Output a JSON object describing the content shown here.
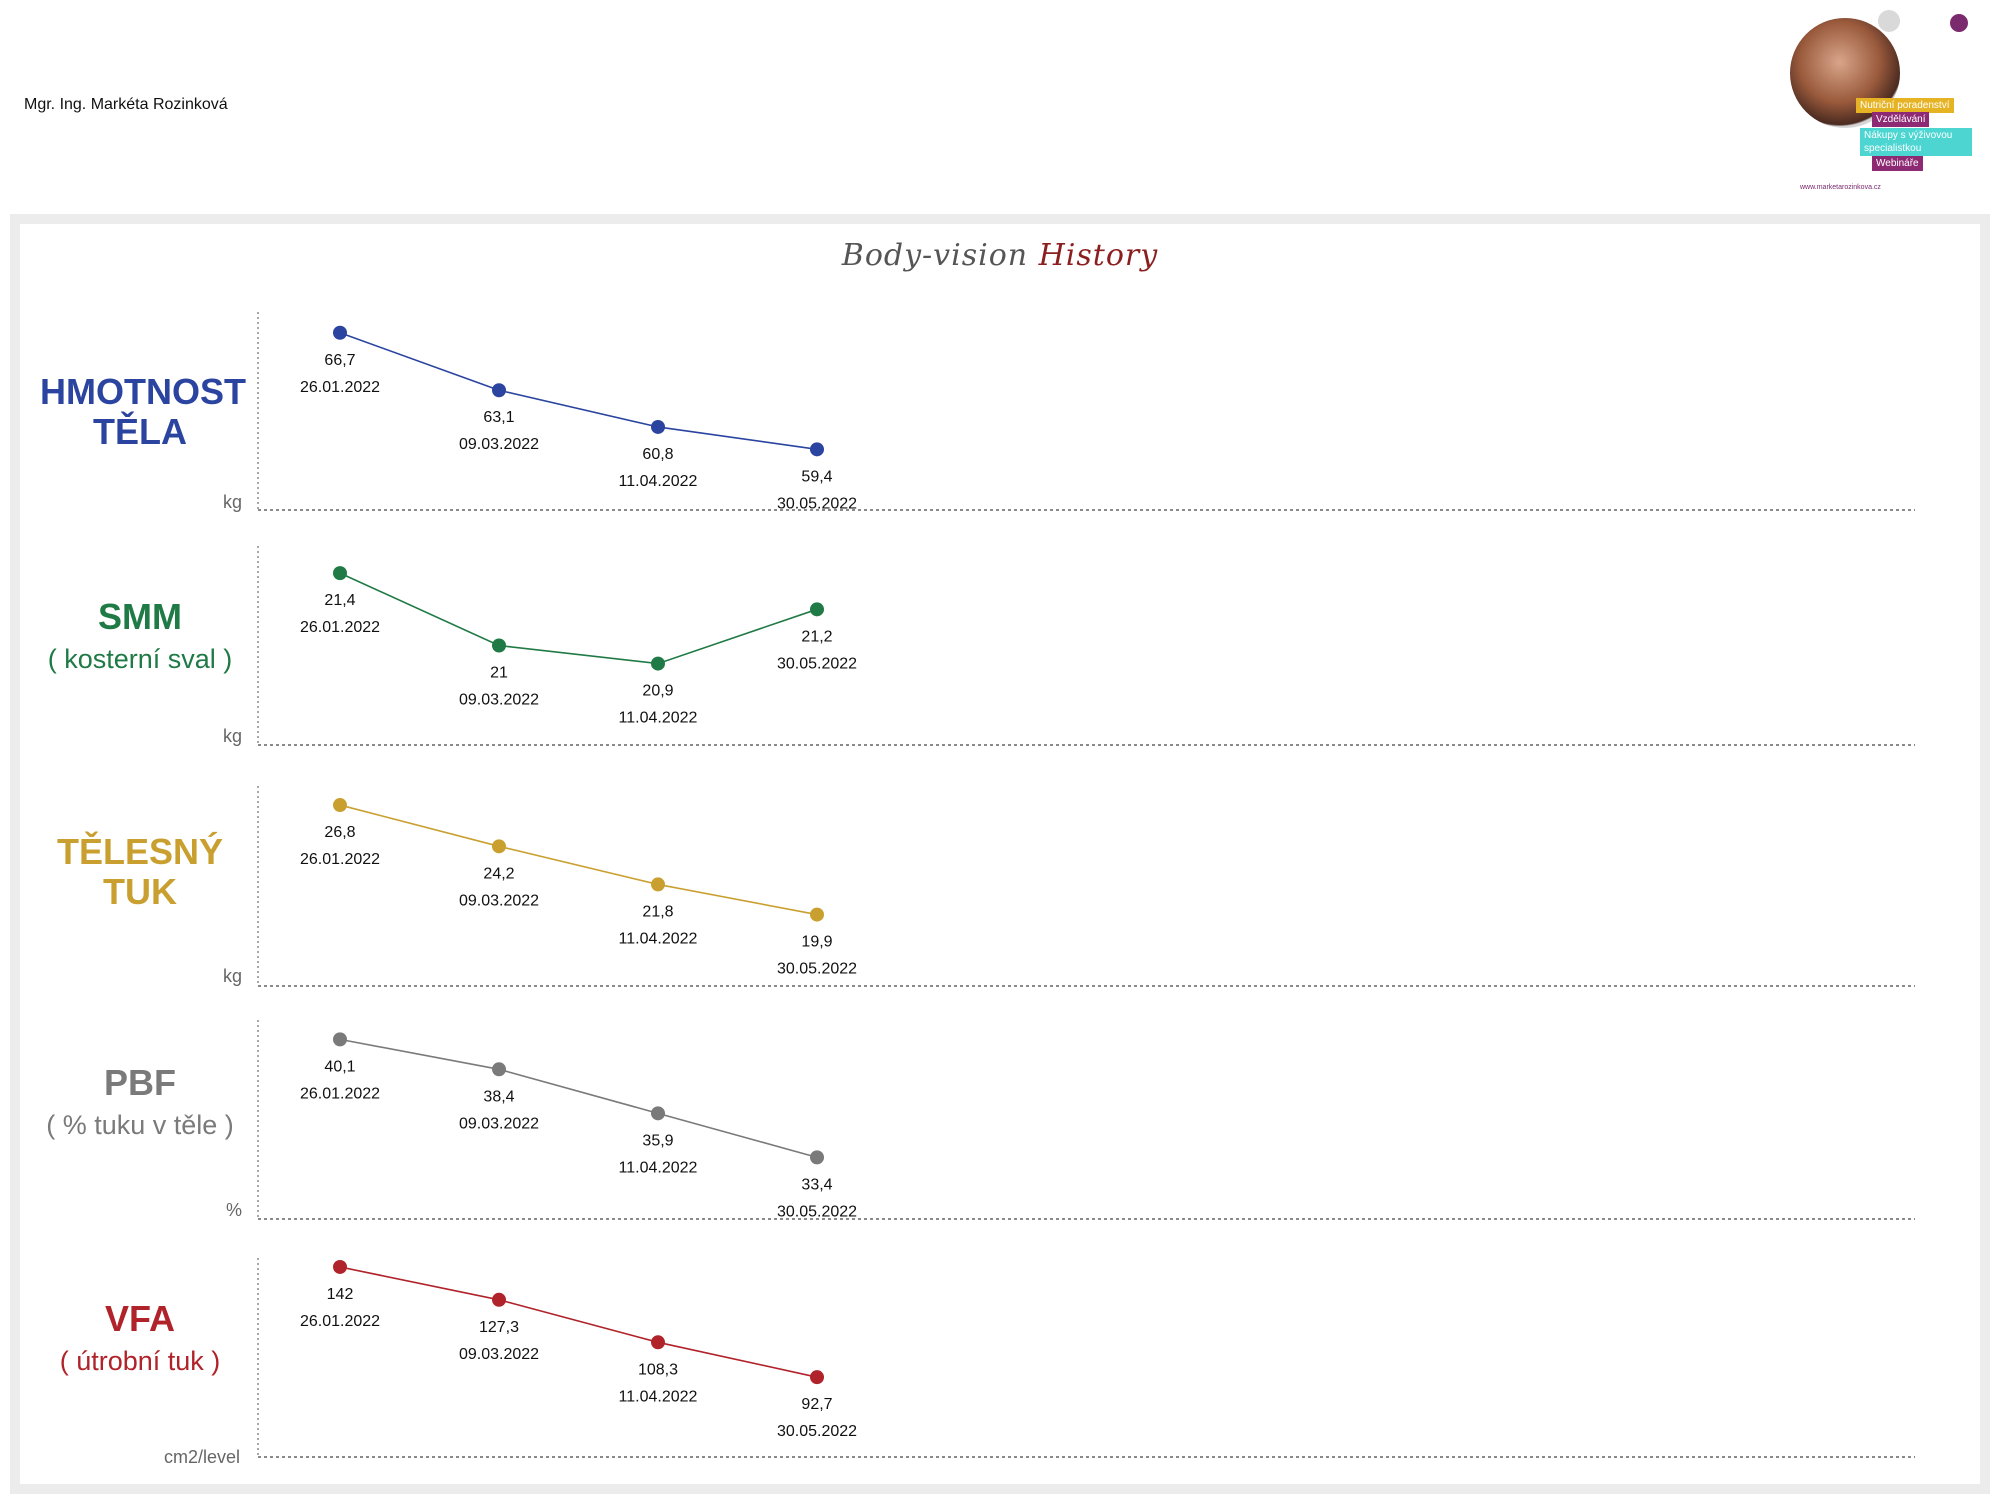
{
  "header": {
    "author": "Mgr. Ing. Markéta Rozinková"
  },
  "logo": {
    "tags": [
      "Nutriční poradenství",
      "Vzdělávání",
      "Nákupy s výživovou specialistkou",
      "Webináře"
    ],
    "url": "www.marketarozinkova.cz"
  },
  "title": {
    "part1": "Body-vision",
    "part2": "History"
  },
  "rows": [
    {
      "main": "HMOTNOST TĚLA",
      "sub": "",
      "unit": "kg",
      "color": "#2a44a0"
    },
    {
      "main": "SMM",
      "sub": "( kosterní sval )",
      "unit": "kg",
      "color": "#1f7a45"
    },
    {
      "main": "TĚLESNÝ TUK",
      "sub": "",
      "unit": "kg",
      "color": "#c9a030"
    },
    {
      "main": "PBF",
      "sub": "( % tuku v těle )",
      "unit": "%",
      "color": "#7a7a7a"
    },
    {
      "main": "VFA",
      "sub": "( útrobní tuk )",
      "unit": "cm2/level",
      "color": "#b0232a"
    }
  ],
  "chart_data": [
    {
      "type": "line",
      "x": [
        "26.01.2022",
        "09.03.2022",
        "11.04.2022",
        "30.05.2022"
      ],
      "values": [
        66.7,
        63.1,
        60.8,
        59.4
      ],
      "labels": [
        "66,7",
        "63,1",
        "60,8",
        "59,4"
      ],
      "ylabel": "kg",
      "ylim": [
        55.6,
        68.0
      ],
      "color": "#2a44a0"
    },
    {
      "type": "line",
      "x": [
        "26.01.2022",
        "09.03.2022",
        "11.04.2022",
        "30.05.2022"
      ],
      "values": [
        21.4,
        21.0,
        20.9,
        21.2
      ],
      "labels": [
        "21,4",
        "21",
        "20,9",
        "21,2"
      ],
      "ylabel": "kg",
      "ylim": [
        20.45,
        21.55
      ],
      "color": "#1f7a45"
    },
    {
      "type": "line",
      "x": [
        "26.01.2022",
        "09.03.2022",
        "11.04.2022",
        "30.05.2022"
      ],
      "values": [
        26.8,
        24.2,
        21.8,
        19.9
      ],
      "labels": [
        "26,8",
        "24,2",
        "21,8",
        "19,9"
      ],
      "ylabel": "kg",
      "ylim": [
        15.4,
        28.0
      ],
      "color": "#c9a030"
    },
    {
      "type": "line",
      "x": [
        "26.01.2022",
        "09.03.2022",
        "11.04.2022",
        "30.05.2022"
      ],
      "values": [
        40.1,
        38.4,
        35.9,
        33.4
      ],
      "labels": [
        "40,1",
        "38,4",
        "35,9",
        "33,4"
      ],
      "ylabel": "%",
      "ylim": [
        29.9,
        41.2
      ],
      "color": "#7a7a7a"
    },
    {
      "type": "line",
      "x": [
        "26.01.2022",
        "09.03.2022",
        "11.04.2022",
        "30.05.2022"
      ],
      "values": [
        142,
        127.3,
        108.3,
        92.7
      ],
      "labels": [
        "142",
        "127,3",
        "108,3",
        "92,7"
      ],
      "ylabel": "cm2/level",
      "ylim": [
        57.0,
        146.0
      ],
      "color": "#b0232a"
    }
  ]
}
